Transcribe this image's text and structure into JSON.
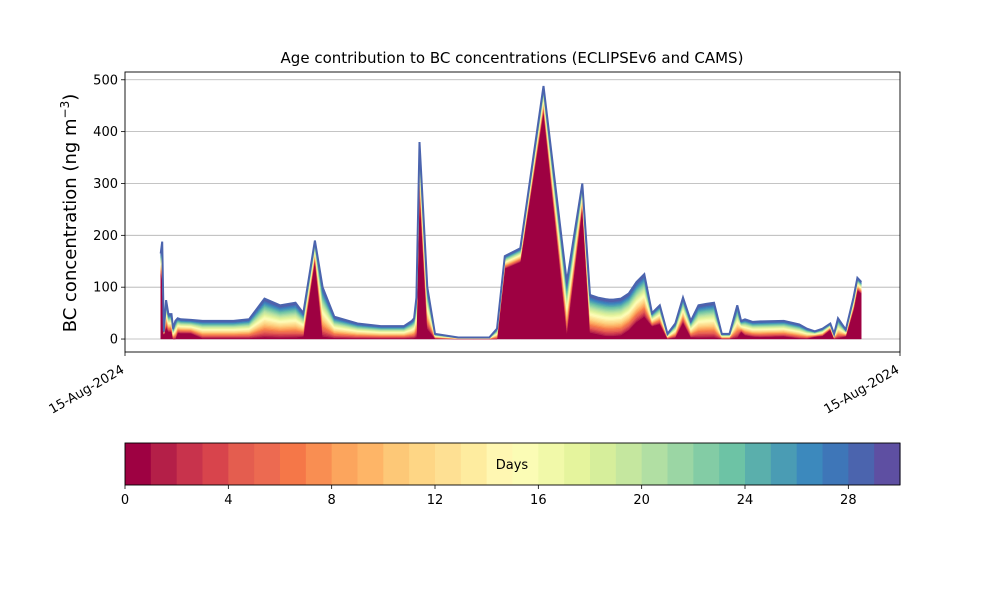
{
  "chart_data": {
    "type": "area",
    "title": "Age contribution to BC concentrations (ECLIPSEv6 and CAMS)",
    "ylabel_main": "BC concentration (ng m",
    "ylabel_sup": "−3",
    "ylabel_close": ")",
    "xlabel": "",
    "ylim": [
      -25,
      515
    ],
    "yticks": [
      0,
      100,
      200,
      300,
      400,
      500
    ],
    "xtick_labels": [
      "15-Aug-2024",
      "15-Aug-2024"
    ],
    "grid": "horizontal",
    "x_range": [
      0,
      100
    ],
    "x": [
      4.6,
      4.8,
      5.0,
      5.3,
      5.6,
      6.0,
      6.2,
      6.5,
      6.8,
      7.2,
      8.5,
      10.0,
      14.0,
      16.0,
      18.0,
      20.0,
      22.0,
      23.0,
      24.5,
      25.5,
      27.0,
      30.0,
      33.0,
      35.0,
      36.0,
      37.0,
      37.3,
      37.6,
      38.0,
      39.0,
      40.0,
      43.0,
      45.0,
      47.0,
      48.0,
      49.0,
      51.0,
      54.0,
      57.0,
      59.0,
      60.0,
      61.0,
      62.0,
      62.5,
      63.0,
      64.0,
      65.0,
      66.0,
      67.0,
      68.0,
      69.0,
      70.0,
      71.0,
      72.0,
      73.0,
      74.0,
      75.0,
      76.0,
      77.0,
      78.0,
      79.0,
      79.5,
      80.0,
      81.0,
      82.0,
      85.0,
      87.0,
      88.0,
      89.0,
      90.0,
      91.0,
      91.5,
      92.0,
      93.0,
      94.0,
      94.5,
      95.0
    ],
    "y_total": [
      165,
      188,
      15,
      75,
      48,
      48,
      20,
      35,
      40,
      38,
      37,
      35,
      35,
      38,
      78,
      65,
      70,
      50,
      190,
      100,
      43,
      30,
      25,
      25,
      25,
      35,
      40,
      80,
      380,
      100,
      10,
      3,
      3,
      3,
      20,
      160,
      175,
      488,
      110,
      300,
      85,
      80,
      77,
      76,
      76,
      78,
      88,
      110,
      125,
      50,
      65,
      10,
      30,
      80,
      35,
      65,
      68,
      70,
      10,
      10,
      65,
      35,
      38,
      33,
      34,
      35,
      28,
      20,
      15,
      20,
      30,
      10,
      40,
      18,
      80,
      118,
      110
    ],
    "young_fraction": [
      0.75,
      0.6,
      0.6,
      0.3,
      0.3,
      0.3,
      0.0,
      0.0,
      0.3,
      0.3,
      0.3,
      0.05,
      0.05,
      0.05,
      0.05,
      0.05,
      0.05,
      0.1,
      0.8,
      0.05,
      0.05,
      0.05,
      0.05,
      0.05,
      0.05,
      0.05,
      0.05,
      0.05,
      0.75,
      0.2,
      0.1,
      0.05,
      0.05,
      0.05,
      0.0,
      0.85,
      0.85,
      0.9,
      0.1,
      0.85,
      0.15,
      0.12,
      0.08,
      0.08,
      0.08,
      0.1,
      0.2,
      0.3,
      0.35,
      0.5,
      0.45,
      0.05,
      0.1,
      0.4,
      0.1,
      0.05,
      0.05,
      0.05,
      0.05,
      0.05,
      0.05,
      0.4,
      0.2,
      0.15,
      0.12,
      0.15,
      0.05,
      0.05,
      0.3,
      0.3,
      0.6,
      0.05,
      0.05,
      0.3,
      0.7,
      0.8,
      0.8
    ],
    "colorbar": {
      "label": "Days",
      "ticks": [
        0,
        4,
        8,
        12,
        16,
        20,
        24,
        28
      ],
      "range": [
        0,
        30
      ],
      "n_bins": 30,
      "colors": [
        "#9e0142",
        "#b41f48",
        "#c8334c",
        "#d8444c",
        "#e45d4f",
        "#ec6a51",
        "#f57748",
        "#f98e52",
        "#fca55d",
        "#feb567",
        "#fdc877",
        "#fed685",
        "#fee093",
        "#feec9f",
        "#fff7b2",
        "#fbfcb5",
        "#f1f9a9",
        "#e5f49d",
        "#d6ee9b",
        "#c5e79f",
        "#b1dfa3",
        "#9bd6a4",
        "#83cca5",
        "#6dc3a5",
        "#5aafac",
        "#4a9cb4",
        "#3c89bd",
        "#3e76b8",
        "#4b64ae",
        "#5e4fa2"
      ]
    }
  }
}
